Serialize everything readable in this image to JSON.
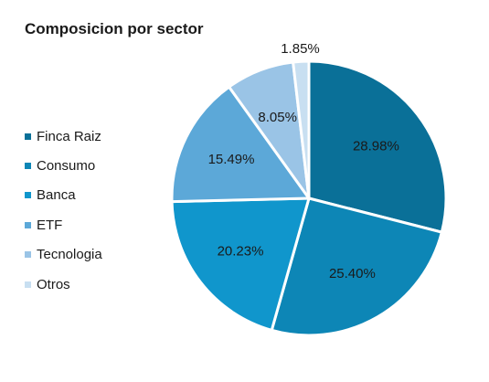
{
  "chart_data": {
    "type": "pie",
    "title": "Composicion por sector",
    "legend_position": "left",
    "categories": [
      "Finca Raiz",
      "Consumo",
      "Banca",
      "ETF",
      "Tecnologia",
      "Otros"
    ],
    "values": [
      28.98,
      25.4,
      20.23,
      15.49,
      8.05,
      1.85
    ],
    "labels": [
      "28.98%",
      "25.40%",
      "20.23%",
      "15.49%",
      "8.05%",
      "1.85%"
    ],
    "colors": [
      "#0a7098",
      "#0d86b6",
      "#1096cc",
      "#5ca8d8",
      "#9ac4e6",
      "#c8dff1"
    ]
  }
}
